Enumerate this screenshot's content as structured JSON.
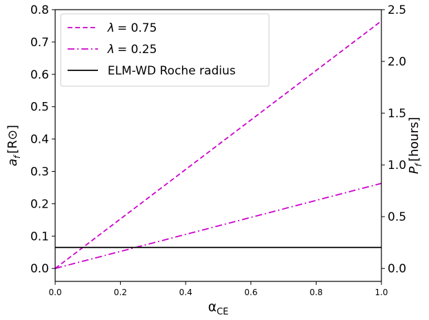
{
  "chart_data": {
    "type": "line",
    "xlabel": "αCE",
    "xlabel_main": "α",
    "xlabel_sub": "CE",
    "ylabel_left": "af [R⊙]",
    "ylabel_left_main": "a",
    "ylabel_left_sub": "f",
    "ylabel_left_unit": "[R⊙]",
    "ylabel_right": "Pf [hours]",
    "ylabel_right_main": "P",
    "ylabel_right_sub": "f",
    "ylabel_right_unit": "[hours]",
    "xlim": [
      0.0,
      1.0
    ],
    "ylim_left": [
      -0.04,
      0.8
    ],
    "ylim_right": [
      -0.125,
      2.5
    ],
    "x_ticks": [
      "0.0",
      "0.2",
      "0.4",
      "0.6",
      "0.8",
      "1.0"
    ],
    "x_tick_values": [
      0.0,
      0.2,
      0.4,
      0.6,
      0.8,
      1.0
    ],
    "y_left_ticks": [
      "0.0",
      "0.1",
      "0.2",
      "0.3",
      "0.4",
      "0.5",
      "0.6",
      "0.7",
      "0.8"
    ],
    "y_left_tick_values": [
      0.0,
      0.1,
      0.2,
      0.3,
      0.4,
      0.5,
      0.6,
      0.7,
      0.8
    ],
    "y_right_ticks": [
      "0.0",
      "0.5",
      "1.0",
      "1.5",
      "2.0",
      "2.5"
    ],
    "y_right_tick_values": [
      0.0,
      0.5,
      1.0,
      1.5,
      2.0,
      2.5
    ],
    "grid": false,
    "legend_position": "top-left",
    "series": [
      {
        "name": "λ = 0.75",
        "legend_symbol": "λ",
        "legend_value": "= 0.75",
        "x": [
          0.0,
          1.0
        ],
        "y": [
          0.0,
          0.765
        ],
        "color": "#cc00cc",
        "style": "dashed"
      },
      {
        "name": "λ = 0.25",
        "legend_symbol": "λ",
        "legend_value": "= 0.25",
        "x": [
          0.0,
          1.0
        ],
        "y": [
          0.0,
          0.263
        ],
        "color": "#cc00cc",
        "style": "dashdot"
      },
      {
        "name": "ELM-WD Roche radius",
        "x": [
          0.0,
          1.0
        ],
        "y": [
          0.065,
          0.065
        ],
        "color": "#000000",
        "style": "solid"
      }
    ]
  }
}
